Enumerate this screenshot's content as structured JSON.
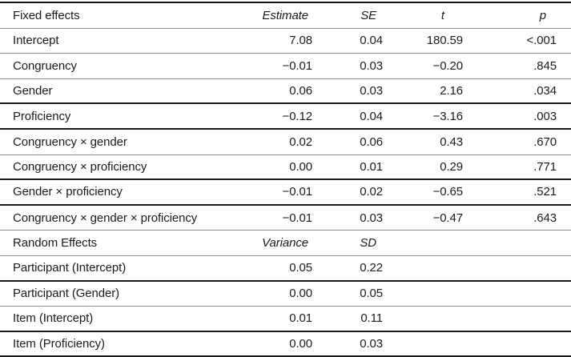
{
  "colors": {
    "background": "#ffffff",
    "text": "#1b1b1b",
    "rule_strong": "#1a1a1a",
    "rule_light": "#909090"
  },
  "table": {
    "fixed": {
      "header": {
        "label": "Fixed effects",
        "estimate": "Estimate",
        "se": "SE",
        "t": "t",
        "p": "p"
      },
      "rows": [
        {
          "label": "Intercept",
          "estimate": "7.08",
          "se": "0.04",
          "t": "180.59",
          "p": "<.001"
        },
        {
          "label": "Congruency",
          "estimate": "−0.01",
          "se": "0.03",
          "t": "−0.20",
          "p": ".845"
        },
        {
          "label": "Gender",
          "estimate": "0.06",
          "se": "0.03",
          "t": "2.16",
          "p": ".034"
        },
        {
          "label": "Proficiency",
          "estimate": "−0.12",
          "se": "0.04",
          "t": "−3.16",
          "p": ".003"
        },
        {
          "label": "Congruency × gender",
          "estimate": "0.02",
          "se": "0.06",
          "t": "0.43",
          "p": ".670"
        },
        {
          "label": "Congruency × proficiency",
          "estimate": "0.00",
          "se": "0.01",
          "t": "0.29",
          "p": ".771"
        },
        {
          "label": "Gender × proficiency",
          "estimate": "−0.01",
          "se": "0.02",
          "t": "−0.65",
          "p": ".521"
        },
        {
          "label": "Congruency × gender × proficiency",
          "estimate": "−0.01",
          "se": "0.03",
          "t": "−0.47",
          "p": ".643"
        }
      ]
    },
    "random": {
      "header": {
        "label": "Random Effects",
        "variance": "Variance",
        "sd": "SD"
      },
      "rows": [
        {
          "label": "Participant (Intercept)",
          "variance": "0.05",
          "sd": "0.22"
        },
        {
          "label": "Participant (Gender)",
          "variance": "0.00",
          "sd": "0.05"
        },
        {
          "label": "Item (Intercept)",
          "variance": "0.01",
          "sd": "0.11"
        },
        {
          "label": "Item (Proficiency)",
          "variance": "0.00",
          "sd": "0.03"
        }
      ]
    }
  }
}
